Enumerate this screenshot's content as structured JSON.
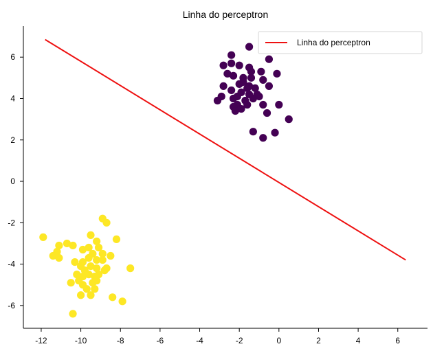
{
  "chart_data": {
    "type": "scatter",
    "title": "Linha do perceptron",
    "xlabel": "",
    "ylabel": "",
    "xlim": [
      -12.9,
      7.5
    ],
    "ylim": [
      -7.1,
      7.5
    ],
    "x_ticks": [
      -12,
      -10,
      -8,
      -6,
      -4,
      -2,
      0,
      2,
      4,
      6
    ],
    "y_ticks": [
      -6,
      -4,
      -2,
      0,
      2,
      4,
      6
    ],
    "x_tick_labels": [
      "-12",
      "-10",
      "-8",
      "-6",
      "-4",
      "-2",
      "0",
      "2",
      "4",
      "6"
    ],
    "y_tick_labels": [
      "-6",
      "-4",
      "-2",
      "0",
      "2",
      "4",
      "6"
    ],
    "grid": false,
    "legend": {
      "placement": "top-right",
      "entries": [
        "Linha do perceptron"
      ]
    },
    "line": {
      "name": "Linha do perceptron",
      "color": "#ee1111",
      "points": [
        [
          -11.8,
          6.85
        ],
        [
          6.4,
          -3.8
        ]
      ]
    },
    "classes": [
      {
        "color": "#440154",
        "points": [
          [
            -2.4,
            6.1
          ],
          [
            -1.5,
            6.5
          ],
          [
            -0.5,
            5.9
          ],
          [
            -2.8,
            5.6
          ],
          [
            -2.4,
            5.7
          ],
          [
            -2.0,
            5.6
          ],
          [
            -1.5,
            5.5
          ],
          [
            -0.9,
            5.3
          ],
          [
            -0.1,
            5.2
          ],
          [
            -2.3,
            5.1
          ],
          [
            -1.8,
            5.0
          ],
          [
            -1.4,
            5.0
          ],
          [
            -0.8,
            4.9
          ],
          [
            -2.8,
            4.6
          ],
          [
            -2.0,
            4.7
          ],
          [
            -1.6,
            4.5
          ],
          [
            -1.2,
            4.5
          ],
          [
            -0.5,
            4.6
          ],
          [
            -2.4,
            4.4
          ],
          [
            -1.9,
            4.3
          ],
          [
            -1.5,
            4.2
          ],
          [
            -1.1,
            4.2
          ],
          [
            -2.9,
            4.1
          ],
          [
            -2.3,
            4.0
          ],
          [
            -1.7,
            3.9
          ],
          [
            -1.3,
            4.0
          ],
          [
            -3.1,
            3.9
          ],
          [
            -2.1,
            3.7
          ],
          [
            -1.6,
            3.7
          ],
          [
            -0.8,
            3.7
          ],
          [
            0.0,
            3.7
          ],
          [
            -2.3,
            3.6
          ],
          [
            -1.9,
            3.5
          ],
          [
            -2.2,
            3.4
          ],
          [
            -0.6,
            3.3
          ],
          [
            0.5,
            3.0
          ],
          [
            -1.3,
            2.4
          ],
          [
            -0.2,
            2.35
          ],
          [
            -0.8,
            2.1
          ],
          [
            -1.4,
            5.3
          ],
          [
            -1.8,
            4.8
          ],
          [
            -2.6,
            5.2
          ],
          [
            -1.0,
            4.1
          ],
          [
            -1.5,
            4.6
          ],
          [
            -2.1,
            4.1
          ]
        ]
      },
      {
        "color": "#fde725",
        "points": [
          [
            -11.9,
            -2.7
          ],
          [
            -11.1,
            -3.1
          ],
          [
            -10.7,
            -3.0
          ],
          [
            -10.4,
            -3.1
          ],
          [
            -11.2,
            -3.4
          ],
          [
            -11.4,
            -3.6
          ],
          [
            -11.1,
            -3.7
          ],
          [
            -9.5,
            -2.6
          ],
          [
            -9.2,
            -2.9
          ],
          [
            -8.9,
            -1.8
          ],
          [
            -8.7,
            -2.0
          ],
          [
            -8.2,
            -2.8
          ],
          [
            -9.9,
            -3.3
          ],
          [
            -9.6,
            -3.2
          ],
          [
            -9.1,
            -3.2
          ],
          [
            -9.4,
            -3.5
          ],
          [
            -8.9,
            -3.5
          ],
          [
            -8.5,
            -3.6
          ],
          [
            -10.3,
            -3.9
          ],
          [
            -9.9,
            -3.9
          ],
          [
            -9.6,
            -3.7
          ],
          [
            -9.2,
            -3.8
          ],
          [
            -8.9,
            -3.8
          ],
          [
            -10.0,
            -4.1
          ],
          [
            -9.5,
            -4.1
          ],
          [
            -9.2,
            -4.2
          ],
          [
            -8.7,
            -4.2
          ],
          [
            -10.2,
            -4.5
          ],
          [
            -9.9,
            -4.6
          ],
          [
            -9.6,
            -4.5
          ],
          [
            -9.3,
            -4.6
          ],
          [
            -10.5,
            -4.9
          ],
          [
            -9.9,
            -5.0
          ],
          [
            -9.4,
            -4.9
          ],
          [
            -9.2,
            -4.8
          ],
          [
            -9.7,
            -5.2
          ],
          [
            -9.3,
            -5.2
          ],
          [
            -10.0,
            -5.5
          ],
          [
            -9.5,
            -5.5
          ],
          [
            -8.4,
            -5.6
          ],
          [
            -10.4,
            -6.4
          ],
          [
            -7.5,
            -4.2
          ],
          [
            -7.9,
            -5.8
          ],
          [
            -8.8,
            -4.3
          ],
          [
            -9.8,
            -4.3
          ],
          [
            -10.1,
            -4.8
          ],
          [
            -9.1,
            -4.5
          ]
        ]
      }
    ]
  }
}
